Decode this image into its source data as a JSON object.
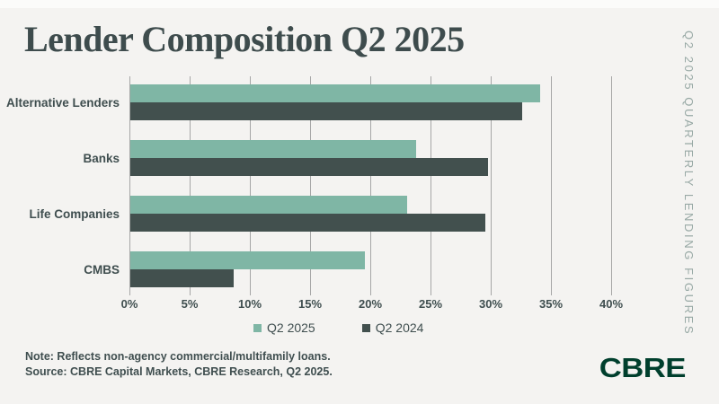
{
  "title": "Lender Composition Q2 2025",
  "side_label": "Q2 2025 Quarterly Lending Figures",
  "note_line1": "Note: Reflects non-agency commercial/multifamily loans.",
  "note_line2": "Source: CBRE Capital Markets, CBRE Research, Q2 2025.",
  "logo_text": "CBRE",
  "colors": {
    "background": "#F4F3F1",
    "title": "#3E4C4D",
    "text": "#3F4E4F",
    "q2_2025": "#7FB6A5",
    "q2_2024": "#42504E",
    "gridline": "#A6A6A6",
    "side_label": "#98A9A5",
    "logo": "#003F2D"
  },
  "chart_data": {
    "type": "bar",
    "orientation": "horizontal",
    "title": "Lender Composition Q2 2025",
    "categories": [
      "Alternative Lenders",
      "Banks",
      "Life Companies",
      "CMBS"
    ],
    "series": [
      {
        "name": "Q2 2025",
        "color_key": "q2_2025",
        "values": [
          34,
          23.7,
          23,
          19.5
        ]
      },
      {
        "name": "Q2 2024",
        "color_key": "q2_2024",
        "values": [
          32.5,
          29.7,
          29.5,
          8.6
        ]
      }
    ],
    "value_unit": "%",
    "xlim": [
      0,
      40
    ],
    "tick_step": 5,
    "tick_labels": [
      "0%",
      "5%",
      "10%",
      "15%",
      "20%",
      "25%",
      "30%",
      "35%",
      "40%"
    ],
    "grid": true,
    "legend_position": "bottom"
  }
}
